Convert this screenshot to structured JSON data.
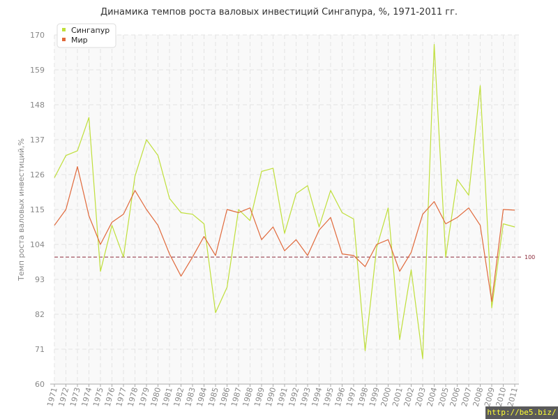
{
  "watermark": "http://be5.biz/",
  "colors": {
    "series1": "#bfdf3a",
    "series2": "#e0683a",
    "reference": "#8b2a3a",
    "grid": "#e4e4e4",
    "axis": "#aaaaaa"
  },
  "chart_data": {
    "type": "line",
    "title": "Динамика темпов роста валовых инвестиций Сингапура, %, 1971-2011 гг.",
    "xlabel": "",
    "ylabel": "Темп роста валовых инвестиций,%",
    "ylim": [
      60,
      170
    ],
    "yticks": [
      60,
      71,
      82,
      93,
      104,
      115,
      126,
      137,
      148,
      159,
      170
    ],
    "grid": true,
    "legend_position": "top-left",
    "reference_line": {
      "value": 100,
      "label": "100"
    },
    "x": [
      "1971",
      "1972",
      "1973",
      "1974",
      "1975",
      "1976",
      "1977",
      "1978",
      "1979",
      "1980",
      "1981",
      "1982",
      "1983",
      "1984",
      "1985",
      "1986",
      "1987",
      "1988",
      "1989",
      "1990",
      "1991",
      "1992",
      "1993",
      "1994",
      "1995",
      "1996",
      "1997",
      "1998",
      "1999",
      "2000",
      "2001",
      "2002",
      "2003",
      "2004",
      "2005",
      "2006",
      "2007",
      "2008",
      "2009",
      "2010",
      "2011"
    ],
    "series": [
      {
        "name": "Сингапур",
        "values": [
          125,
          132,
          133.5,
          144,
          95.5,
          110,
          100,
          125.5,
          137,
          132,
          118.5,
          114,
          113.5,
          110.5,
          82.5,
          90.5,
          115,
          111.5,
          127,
          128,
          107.5,
          120,
          122.5,
          109.5,
          121,
          114,
          112,
          70.5,
          103,
          115.5,
          74,
          96,
          68,
          167,
          100,
          124.5,
          119.5,
          154,
          84,
          110.5,
          109.5
        ]
      },
      {
        "name": "Мир",
        "values": [
          110,
          115,
          128.5,
          113,
          104,
          111,
          113.5,
          121,
          115,
          110,
          101,
          94,
          100,
          106.5,
          100.5,
          115,
          114,
          115.5,
          105.5,
          109.5,
          102,
          105.5,
          100.5,
          108.5,
          112.5,
          101,
          100.5,
          97,
          104,
          105.5,
          95.5,
          101.5,
          113.5,
          117.5,
          110.5,
          112.5,
          115.5,
          110,
          86,
          115,
          114.8
        ]
      }
    ]
  }
}
